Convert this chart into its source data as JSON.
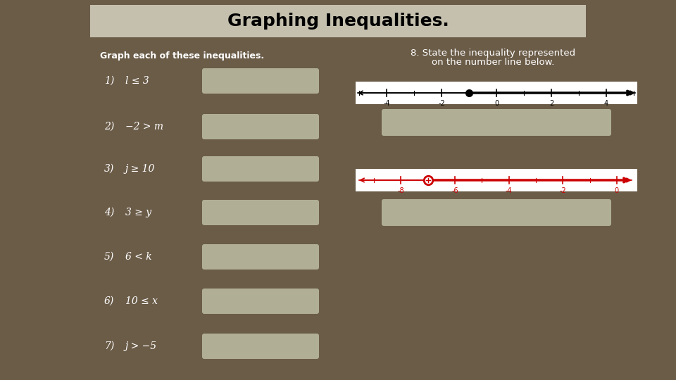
{
  "title": "Graphing Inequalities.",
  "bg_color": "#6b5c48",
  "title_bg": "#c4c0ad",
  "left_heading": "Graph each of these inequalities.",
  "right_heading_line1": "8. State the inequality represented",
  "right_heading_line2": "on the number line below.",
  "items": [
    {
      "num": "1)",
      "expr": "l ≤ 3"
    },
    {
      "num": "2)",
      "expr": "−2 > m"
    },
    {
      "num": "3)",
      "expr": "j ≥ 10"
    },
    {
      "num": "4)",
      "expr": "3 ≥ y"
    },
    {
      "num": "5)",
      "expr": "6 < k"
    },
    {
      "num": "6)",
      "expr": "10 ≤ x"
    },
    {
      "num": "7)",
      "expr": "j > −5"
    }
  ],
  "box_color": "#b0af96",
  "numberline1": {
    "ticks": [
      -4,
      -2,
      0,
      2,
      4
    ],
    "minor_ticks": [
      -5,
      -3,
      -1,
      1,
      3,
      5
    ],
    "filled_dot": -1,
    "color": "black"
  },
  "numberline2": {
    "ticks": [
      -8,
      -6,
      -4,
      -2,
      0
    ],
    "minor_ticks": [
      -9,
      -7,
      -5,
      -3,
      -1
    ],
    "open_dot": -7,
    "color": "#cc0000"
  }
}
